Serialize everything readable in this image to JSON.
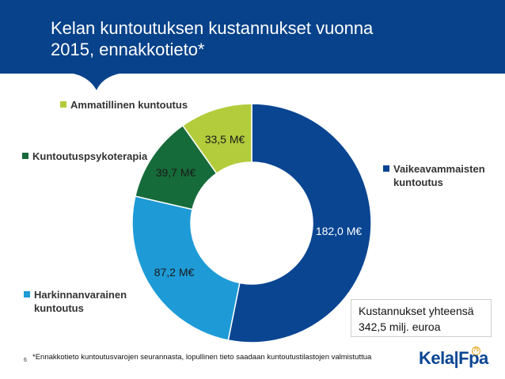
{
  "header": {
    "title_line1": "Kelan kuntoutuksen kustannukset vuonna",
    "title_line2": "2015, ennakkotieto*",
    "bg_color": "#07428a"
  },
  "chart_data": {
    "type": "pie",
    "variant": "doughnut",
    "start_angle_deg": 0,
    "direction": "clockwise",
    "unit": "M€",
    "slices": [
      {
        "name": "Vaikeavammaisten kuntoutus",
        "legend_line1": "Vaikeavammaisten",
        "legend_line2": "kuntoutus",
        "value": 182.0,
        "label": "182,0 M€",
        "color": "#0a4592",
        "label_color": "#ffffff"
      },
      {
        "name": "Harkinnanvarainen kuntoutus",
        "legend_line1": "Harkinnanvarainen",
        "legend_line2": "kuntoutus",
        "value": 87.2,
        "label": "87,2 M€",
        "color": "#1e9bd7",
        "label_color": "#1a1a1a"
      },
      {
        "name": "Kuntoutuspsykoterapia",
        "legend_line1": "Kuntoutuspsykoterapia",
        "legend_line2": "",
        "value": 39.7,
        "label": "39,7 M€",
        "color": "#166b3a",
        "label_color": "#1a1a1a"
      },
      {
        "name": "Ammatillinen kuntoutus",
        "legend_line1": "Ammatillinen kuntoutus",
        "legend_line2": "",
        "value": 33.5,
        "label": "33,5 M€",
        "color": "#b2cc3c",
        "label_color": "#1a1a1a"
      }
    ],
    "legend": "around chart"
  },
  "total": {
    "line1": "Kustannukset yhteensä",
    "line2": "342,5 milj. euroa"
  },
  "footer": {
    "footnote": "*Ennakkotieto kuntoutusvarojen seurannasta, lopullinen tieto saadaan kuntoutustilastojen valmistuttua",
    "page_number": "6",
    "logo_text": "Kela|Fpa",
    "logo_badge": "75"
  }
}
